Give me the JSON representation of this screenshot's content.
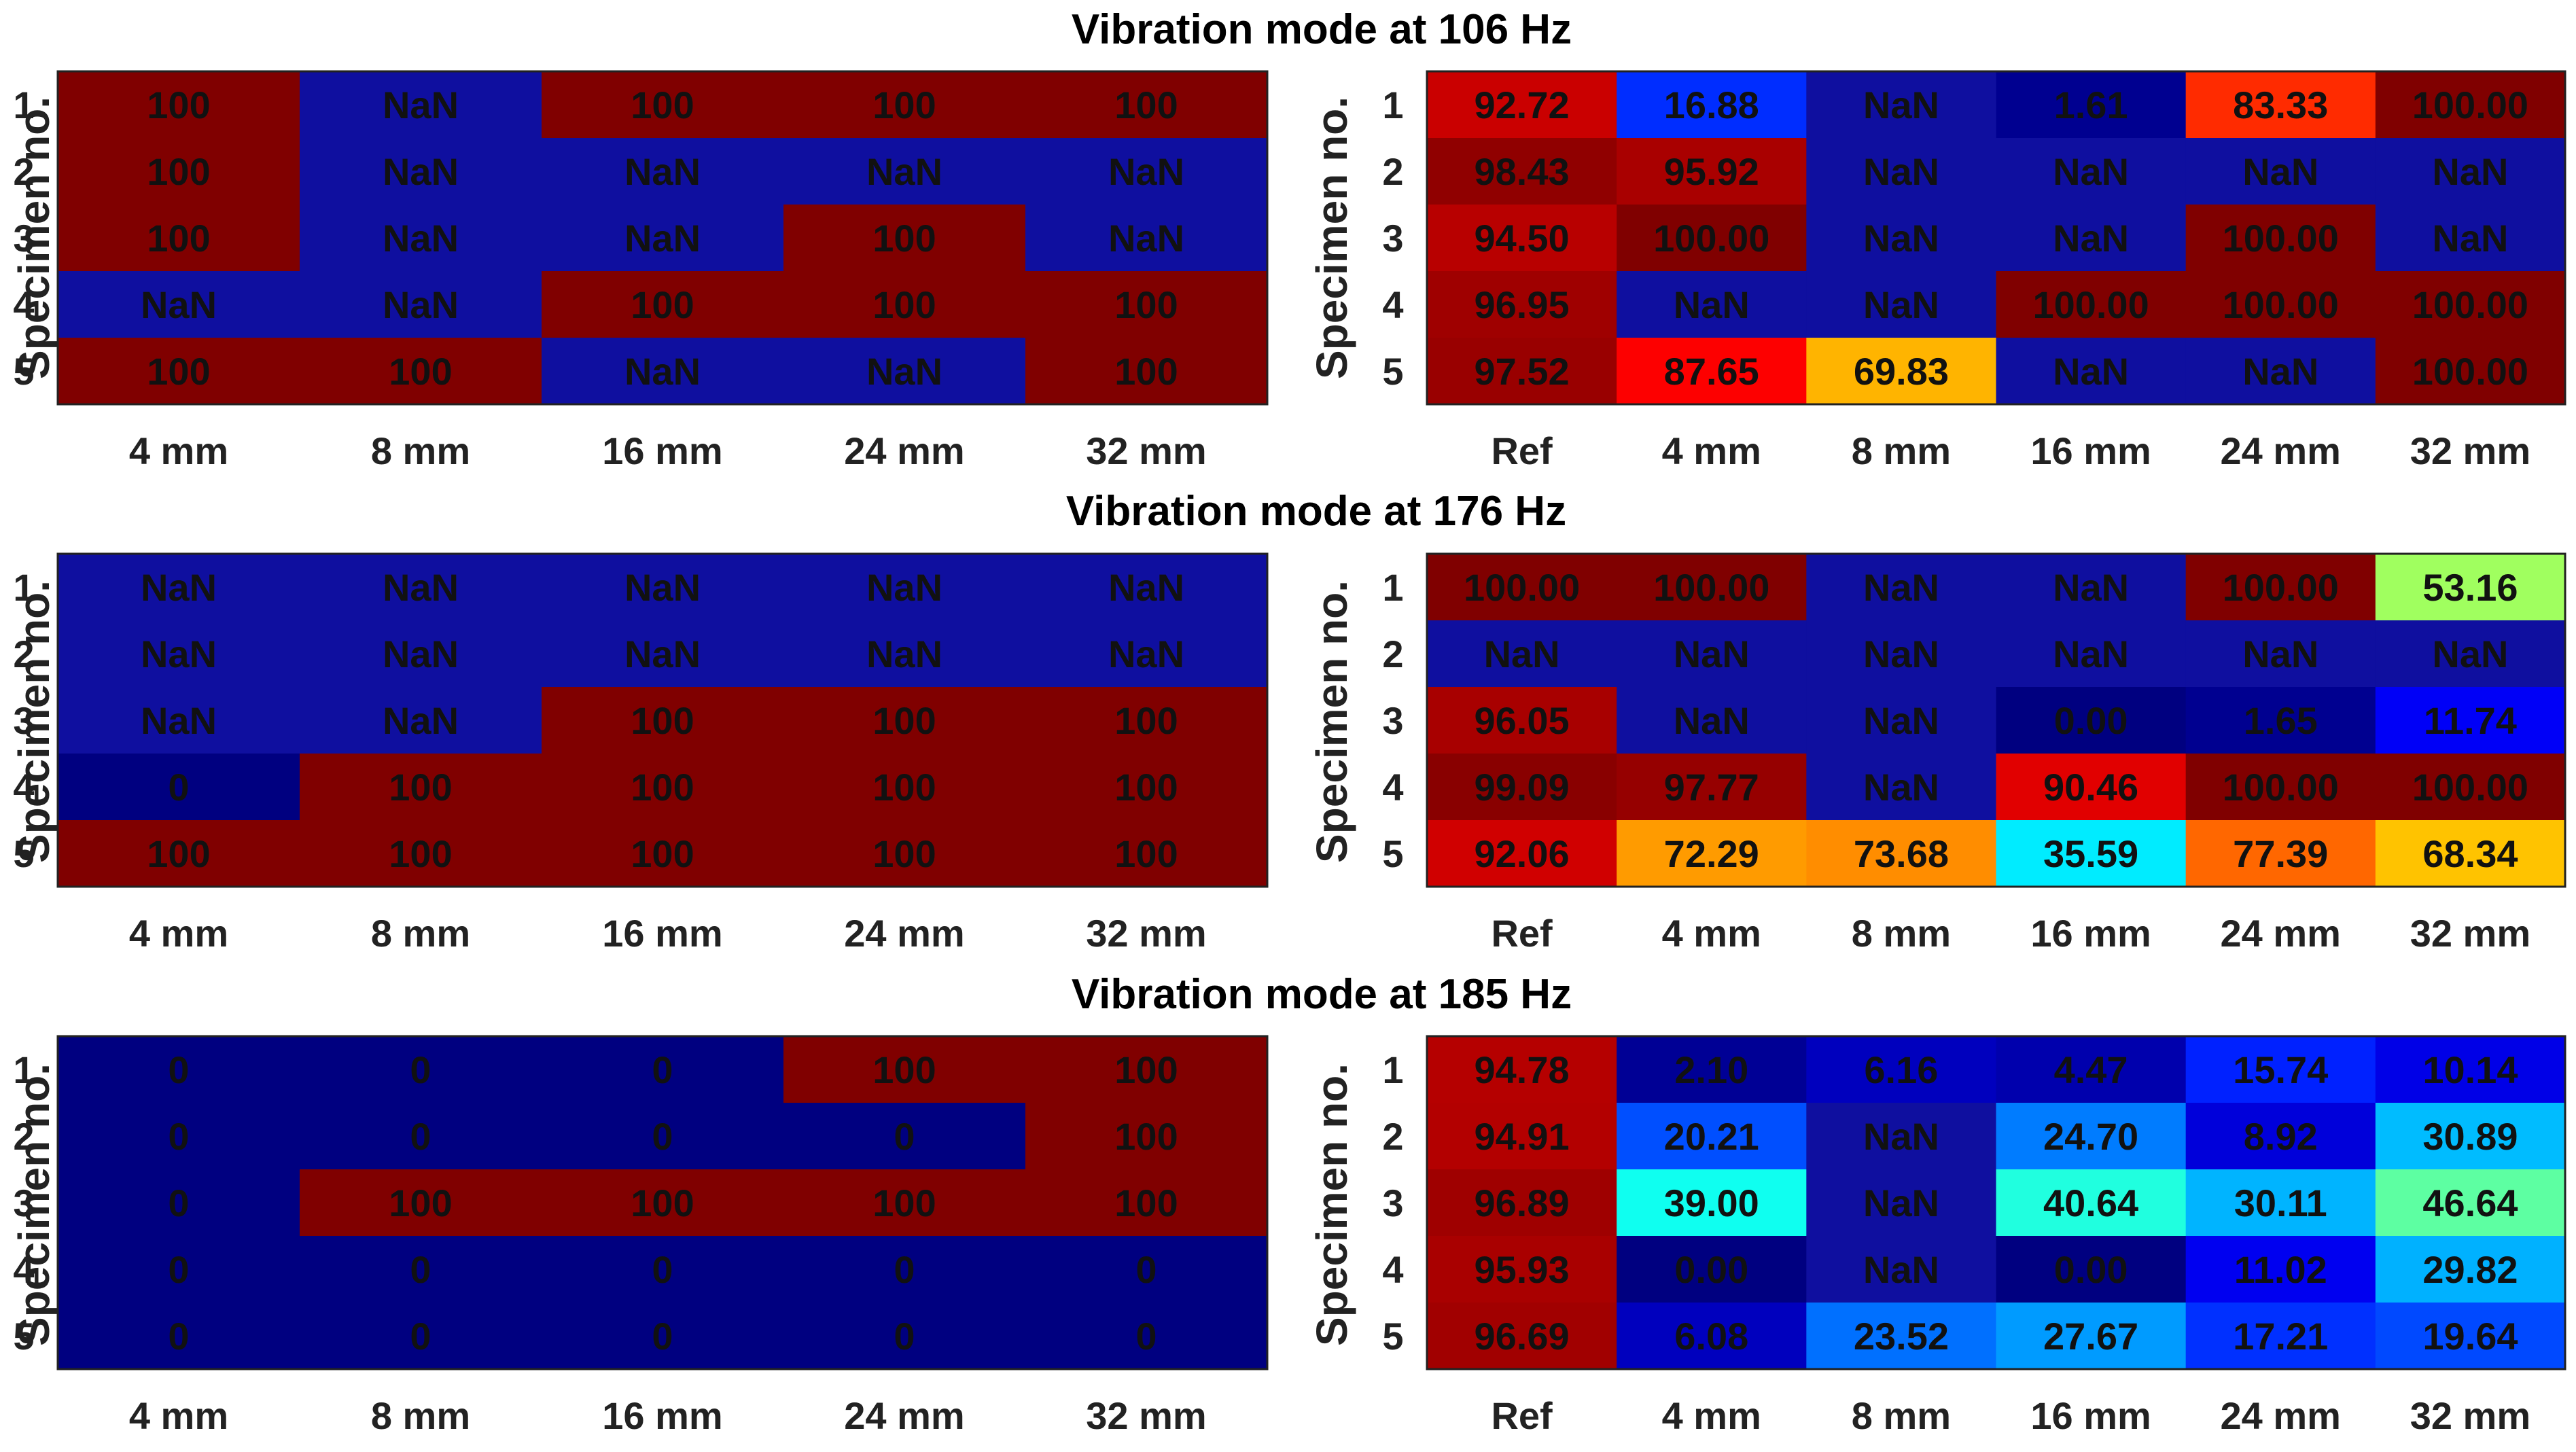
{
  "chart_data": [
    {
      "type": "heatmap",
      "title": "Vibration mode at 106 Hz",
      "ylabel": "Specimen no.",
      "left": {
        "categories": [
          "4 mm",
          "8 mm",
          "16 mm",
          "24 mm",
          "32 mm"
        ],
        "rows": [
          "1",
          "2",
          "3",
          "4",
          "5"
        ],
        "values": [
          [
            "100",
            "NaN",
            "100",
            "100",
            "100"
          ],
          [
            "100",
            "NaN",
            "NaN",
            "NaN",
            "NaN"
          ],
          [
            "100",
            "NaN",
            "NaN",
            "100",
            "NaN"
          ],
          [
            "NaN",
            "NaN",
            "100",
            "100",
            "100"
          ],
          [
            "100",
            "100",
            "NaN",
            "NaN",
            "100"
          ]
        ]
      },
      "right": {
        "categories": [
          "Ref",
          "4 mm",
          "8 mm",
          "16 mm",
          "24 mm",
          "32 mm"
        ],
        "rows": [
          "1",
          "2",
          "3",
          "4",
          "5"
        ],
        "values": [
          [
            "92.72",
            "16.88",
            "NaN",
            "1.61",
            "83.33",
            "100.00"
          ],
          [
            "98.43",
            "95.92",
            "NaN",
            "NaN",
            "NaN",
            "NaN"
          ],
          [
            "94.50",
            "100.00",
            "NaN",
            "NaN",
            "100.00",
            "NaN"
          ],
          [
            "96.95",
            "NaN",
            "NaN",
            "100.00",
            "100.00",
            "100.00"
          ],
          [
            "97.52",
            "87.65",
            "69.83",
            "NaN",
            "NaN",
            "100.00"
          ]
        ]
      }
    },
    {
      "type": "heatmap",
      "title": "Vibration mode at 176 Hz",
      "ylabel": "Specimen no.",
      "left": {
        "categories": [
          "4 mm",
          "8 mm",
          "16 mm",
          "24 mm",
          "32 mm"
        ],
        "rows": [
          "1",
          "2",
          "3",
          "4",
          "5"
        ],
        "values": [
          [
            "NaN",
            "NaN",
            "NaN",
            "NaN",
            "NaN"
          ],
          [
            "NaN",
            "NaN",
            "NaN",
            "NaN",
            "NaN"
          ],
          [
            "NaN",
            "NaN",
            "100",
            "100",
            "100"
          ],
          [
            "0",
            "100",
            "100",
            "100",
            "100"
          ],
          [
            "100",
            "100",
            "100",
            "100",
            "100"
          ]
        ]
      },
      "right": {
        "categories": [
          "Ref",
          "4 mm",
          "8 mm",
          "16 mm",
          "24 mm",
          "32 mm"
        ],
        "rows": [
          "1",
          "2",
          "3",
          "4",
          "5"
        ],
        "values": [
          [
            "100.00",
            "100.00",
            "NaN",
            "NaN",
            "100.00",
            "53.16"
          ],
          [
            "NaN",
            "NaN",
            "NaN",
            "NaN",
            "NaN",
            "NaN"
          ],
          [
            "96.05",
            "NaN",
            "NaN",
            "0.00",
            "1.65",
            "11.74"
          ],
          [
            "99.09",
            "97.77",
            "NaN",
            "90.46",
            "100.00",
            "100.00"
          ],
          [
            "92.06",
            "72.29",
            "73.68",
            "35.59",
            "77.39",
            "68.34"
          ]
        ]
      }
    },
    {
      "type": "heatmap",
      "title": "Vibration mode at 185 Hz",
      "ylabel": "Specimen no.",
      "left": {
        "categories": [
          "4 mm",
          "8 mm",
          "16 mm",
          "24 mm",
          "32 mm"
        ],
        "rows": [
          "1",
          "2",
          "3",
          "4",
          "5"
        ],
        "values": [
          [
            "0",
            "0",
            "0",
            "100",
            "100"
          ],
          [
            "0",
            "0",
            "0",
            "0",
            "100"
          ],
          [
            "0",
            "100",
            "100",
            "100",
            "100"
          ],
          [
            "0",
            "0",
            "0",
            "0",
            "0"
          ],
          [
            "0",
            "0",
            "0",
            "0",
            "0"
          ]
        ]
      },
      "right": {
        "categories": [
          "Ref",
          "4 mm",
          "8 mm",
          "16 mm",
          "24 mm",
          "32 mm"
        ],
        "rows": [
          "1",
          "2",
          "3",
          "4",
          "5"
        ],
        "values": [
          [
            "94.78",
            "2.10",
            "6.16",
            "4.47",
            "15.74",
            "10.14"
          ],
          [
            "94.91",
            "20.21",
            "NaN",
            "24.70",
            "8.92",
            "30.89"
          ],
          [
            "96.89",
            "39.00",
            "NaN",
            "40.64",
            "30.11",
            "46.64"
          ],
          [
            "95.93",
            "0.00",
            "NaN",
            "0.00",
            "11.02",
            "29.82"
          ],
          [
            "96.69",
            "6.08",
            "23.52",
            "27.67",
            "17.21",
            "19.64"
          ]
        ]
      }
    }
  ],
  "colors": {
    "nan": "#0f0f9f",
    "colormap": "jet"
  }
}
